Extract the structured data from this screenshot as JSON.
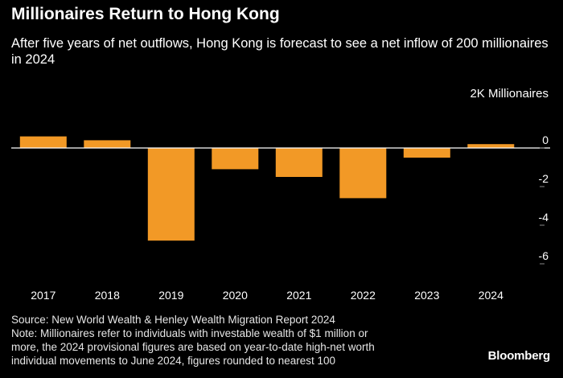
{
  "header": {
    "title": "Millionaires Return to Hong Kong",
    "subtitle": "After five years of net outflows, Hong Kong is forecast to see a net inflow of 200 millionaires in 2024"
  },
  "chart_data": {
    "type": "bar",
    "categories": [
      "2017",
      "2018",
      "2019",
      "2020",
      "2021",
      "2022",
      "2023",
      "2024"
    ],
    "values": [
      0.6,
      0.4,
      -4.8,
      -1.1,
      -1.5,
      -2.6,
      -0.5,
      0.2
    ],
    "unit_label": "2K  Millionaires",
    "yticks": [
      0,
      -2,
      -4,
      -6
    ],
    "ylim": [
      -6,
      0.8
    ],
    "grid": false,
    "colors": {
      "bar": "#f29926",
      "zero_line": "#ffffff",
      "tick_text": "#ffffff",
      "tick_mark": "#888888"
    }
  },
  "footer": {
    "source": "Source: New World Wealth & Henley Wealth Migration Report 2024",
    "note_lines": [
      "Note: Millionaires refer to individuals with investable wealth of $1 million or",
      "more, the 2024 provisional figures are based on year-to-date high-net worth",
      "individual movements to June 2024, figures rounded to nearest 100"
    ]
  },
  "brand": {
    "logo_text": "Bloomberg"
  }
}
